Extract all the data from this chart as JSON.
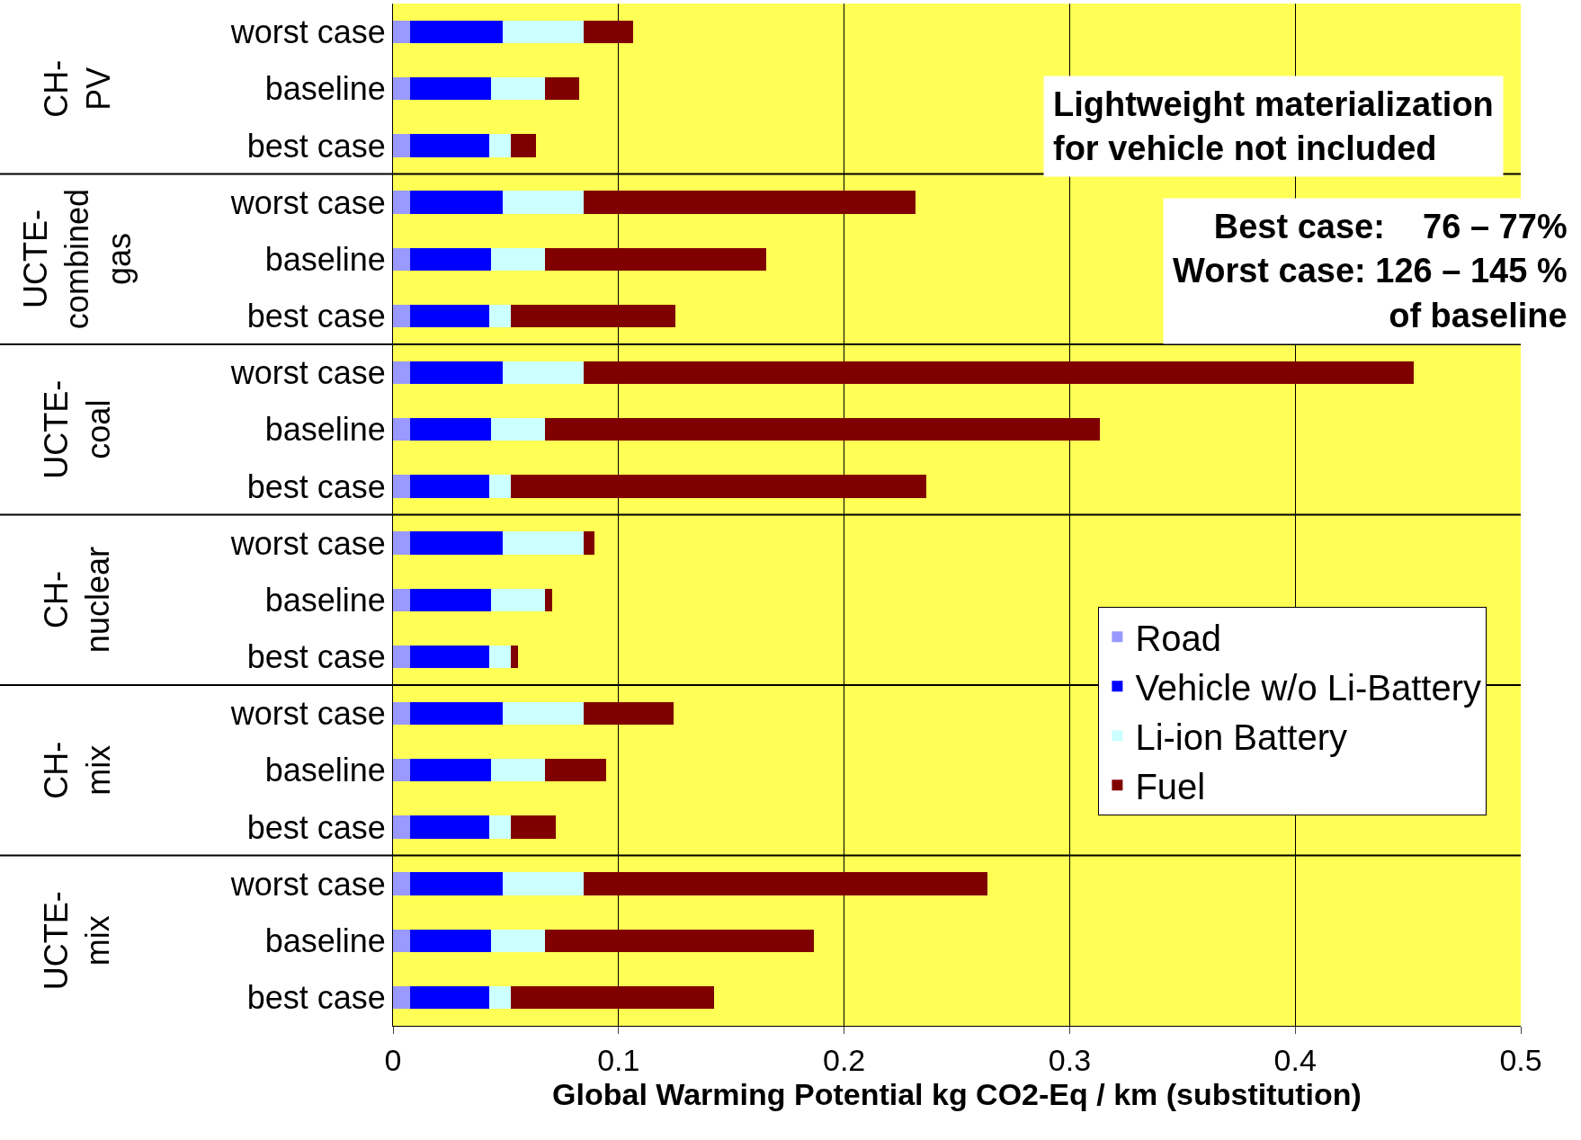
{
  "chart_data": {
    "type": "bar",
    "orientation": "horizontal",
    "stacked": true,
    "categories": [
      "worst case",
      "baseline",
      "best case",
      "worst case",
      "baseline",
      "best case",
      "worst case",
      "baseline",
      "best case",
      "worst case",
      "baseline",
      "best case",
      "worst case",
      "baseline",
      "best case",
      "worst case",
      "baseline",
      "best case"
    ],
    "series": [
      {
        "name": "Road",
        "color": "#9999ff",
        "values": [
          0.0076,
          0.0076,
          0.0076,
          0.0076,
          0.0076,
          0.0076,
          0.0076,
          0.0076,
          0.0076,
          0.0076,
          0.0076,
          0.0076,
          0.0076,
          0.0076,
          0.0076,
          0.0076,
          0.0076,
          0.0076
        ]
      },
      {
        "name": "Vehicle w/o Li-Battery",
        "color": "#0000ff",
        "values": [
          0.0411,
          0.0358,
          0.0349,
          0.0411,
          0.0358,
          0.0349,
          0.0411,
          0.0358,
          0.0349,
          0.0411,
          0.0358,
          0.0349,
          0.0411,
          0.0358,
          0.0349,
          0.0411,
          0.0358,
          0.0349
        ]
      },
      {
        "name": "Li-ion Battery",
        "color": "#ccffff",
        "values": [
          0.0358,
          0.0241,
          0.0098,
          0.0358,
          0.0241,
          0.0098,
          0.0358,
          0.0241,
          0.0098,
          0.0358,
          0.0241,
          0.0098,
          0.0358,
          0.0241,
          0.0098,
          0.0358,
          0.0241,
          0.0098
        ]
      },
      {
        "name": "Fuel",
        "color": "#800000",
        "values": [
          0.022,
          0.015,
          0.011,
          0.147,
          0.098,
          0.073,
          0.368,
          0.246,
          0.184,
          0.005,
          0.003,
          0.003,
          0.04,
          0.027,
          0.02,
          0.179,
          0.119,
          0.09
        ]
      }
    ],
    "xlabel": "Global Warming Potential kg CO2-Eq / km (substitution)",
    "xlim": [
      0,
      0.5
    ],
    "xticks": [
      0,
      0.1,
      0.2,
      0.3,
      0.4,
      0.5
    ],
    "grid": "x",
    "legend": "right",
    "annotations": [
      "CH-PV",
      "UCTE-combined gas",
      "UCTE-coal",
      "CH-nuclear",
      "CH-mix",
      "UCTE-mix",
      "Lightweight materialization\nfor vehicle not included",
      "Best case:    76 – 77%\nWorst case: 126 – 145 %\nof baseline"
    ]
  }
}
